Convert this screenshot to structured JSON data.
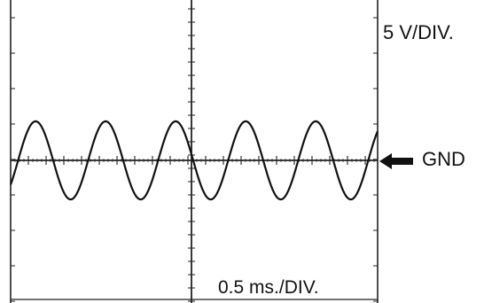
{
  "scope": {
    "voltage_scale": "5 V/DIV.",
    "time_scale": "0.5 ms./DIV.",
    "ground_label": "GND",
    "trace_color": "#111111",
    "grid_color": "#222222"
  }
}
